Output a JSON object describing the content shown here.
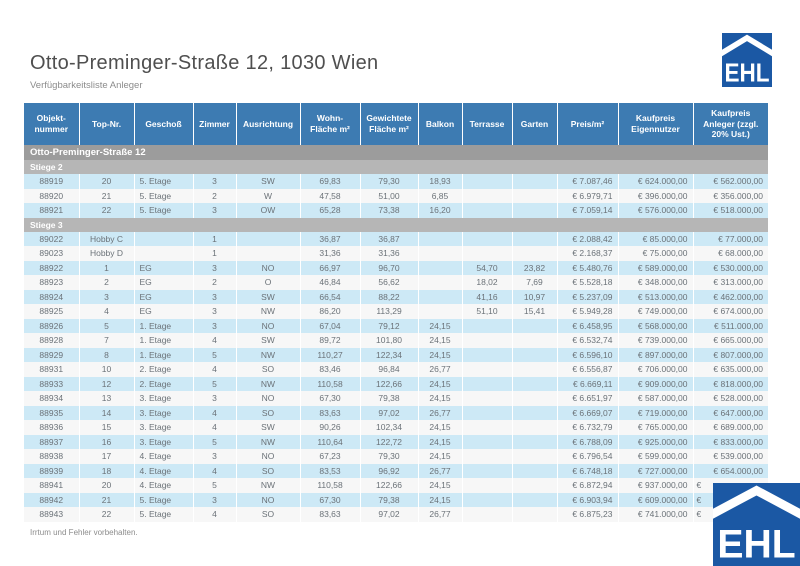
{
  "page": {
    "title": "Otto-Preminger-Straße 12, 1030 Wien",
    "subtitle": "Verfügbarkeitsliste Anleger",
    "footer": "Irrtum und Fehler vorbehalten.",
    "logo_text": "EHL"
  },
  "colors": {
    "header_blue": "#3d7bb2",
    "logo_blue": "#1b58a4",
    "project_band_gray": "#9c9c9c",
    "stiege_band_gray": "#b6b6b6",
    "row_blue": "#cde9f6",
    "row_white": "#f7f7f7",
    "text_gray": "#6b7278"
  },
  "table": {
    "columns": [
      "Objekt-nummer",
      "Top-Nr.",
      "Geschoß",
      "Zimmer",
      "Ausrichtung",
      "Wohn-Fläche m²",
      "Gewichtete Fläche m²",
      "Balkon",
      "Terrasse",
      "Garten",
      "Preis/m²",
      "Kaufpreis Eigennutzer",
      "Kaufpreis Anleger (zzgl. 20% Ust.)"
    ],
    "column_keys": [
      "objektnummer",
      "top_nr",
      "geschoss",
      "zimmer",
      "ausrichtung",
      "wohnflaeche",
      "gewichtete_flaeche",
      "balkon",
      "terrasse",
      "garten",
      "preis_m2",
      "kaufpreis_eigennutzer",
      "kaufpreis_anleger"
    ],
    "project_band": "Otto-Preminger-Straße 12",
    "sections": [
      {
        "label": "Stiege 2",
        "rows": [
          [
            "88919",
            "20",
            "5. Etage",
            "3",
            "SW",
            "69,83",
            "79,30",
            "18,93",
            "",
            "",
            "€ 7.087,46",
            "€ 624.000,00",
            "€ 562.000,00"
          ],
          [
            "88920",
            "21",
            "5. Etage",
            "2",
            "W",
            "47,58",
            "51,00",
            "6,85",
            "",
            "",
            "€ 6.979,71",
            "€ 396.000,00",
            "€ 356.000,00"
          ],
          [
            "88921",
            "22",
            "5. Etage",
            "3",
            "OW",
            "65,28",
            "73,38",
            "16,20",
            "",
            "",
            "€ 7.059,14",
            "€ 576.000,00",
            "€ 518.000,00"
          ]
        ]
      },
      {
        "label": "Stiege 3",
        "rows": [
          [
            "89022",
            "Hobby C",
            "",
            "1",
            "",
            "36,87",
            "36,87",
            "",
            "",
            "",
            "€ 2.088,42",
            "€ 85.000,00",
            "€ 77.000,00"
          ],
          [
            "89023",
            "Hobby D",
            "",
            "1",
            "",
            "31,36",
            "31,36",
            "",
            "",
            "",
            "€ 2.168,37",
            "€ 75.000,00",
            "€ 68.000,00"
          ],
          [
            "88922",
            "1",
            "EG",
            "3",
            "NO",
            "66,97",
            "96,70",
            "",
            "54,70",
            "23,82",
            "€ 5.480,76",
            "€ 589.000,00",
            "€ 530.000,00"
          ],
          [
            "88923",
            "2",
            "EG",
            "2",
            "O",
            "46,84",
            "56,62",
            "",
            "18,02",
            "7,69",
            "€ 5.528,18",
            "€ 348.000,00",
            "€ 313.000,00"
          ],
          [
            "88924",
            "3",
            "EG",
            "3",
            "SW",
            "66,54",
            "88,22",
            "",
            "41,16",
            "10,97",
            "€ 5.237,09",
            "€ 513.000,00",
            "€ 462.000,00"
          ],
          [
            "88925",
            "4",
            "EG",
            "3",
            "NW",
            "86,20",
            "113,29",
            "",
            "51,10",
            "15,41",
            "€ 5.949,28",
            "€ 749.000,00",
            "€ 674.000,00"
          ],
          [
            "88926",
            "5",
            "1. Etage",
            "3",
            "NO",
            "67,04",
            "79,12",
            "24,15",
            "",
            "",
            "€ 6.458,95",
            "€ 568.000,00",
            "€ 511.000,00"
          ],
          [
            "88928",
            "7",
            "1. Etage",
            "4",
            "SW",
            "89,72",
            "101,80",
            "24,15",
            "",
            "",
            "€ 6.532,74",
            "€ 739.000,00",
            "€ 665.000,00"
          ],
          [
            "88929",
            "8",
            "1. Etage",
            "5",
            "NW",
            "110,27",
            "122,34",
            "24,15",
            "",
            "",
            "€ 6.596,10",
            "€ 897.000,00",
            "€ 807.000,00"
          ],
          [
            "88931",
            "10",
            "2. Etage",
            "4",
            "SO",
            "83,46",
            "96,84",
            "26,77",
            "",
            "",
            "€ 6.556,87",
            "€ 706.000,00",
            "€ 635.000,00"
          ],
          [
            "88933",
            "12",
            "2. Etage",
            "5",
            "NW",
            "110,58",
            "122,66",
            "24,15",
            "",
            "",
            "€ 6.669,11",
            "€ 909.000,00",
            "€ 818.000,00"
          ],
          [
            "88934",
            "13",
            "3. Etage",
            "3",
            "NO",
            "67,30",
            "79,38",
            "24,15",
            "",
            "",
            "€ 6.651,97",
            "€ 587.000,00",
            "€ 528.000,00"
          ],
          [
            "88935",
            "14",
            "3. Etage",
            "4",
            "SO",
            "83,63",
            "97,02",
            "26,77",
            "",
            "",
            "€ 6.669,07",
            "€ 719.000,00",
            "€ 647.000,00"
          ],
          [
            "88936",
            "15",
            "3. Etage",
            "4",
            "SW",
            "90,26",
            "102,34",
            "24,15",
            "",
            "",
            "€ 6.732,79",
            "€ 765.000,00",
            "€ 689.000,00"
          ],
          [
            "88937",
            "16",
            "3. Etage",
            "5",
            "NW",
            "110,64",
            "122,72",
            "24,15",
            "",
            "",
            "€ 6.788,09",
            "€ 925.000,00",
            "€ 833.000,00"
          ],
          [
            "88938",
            "17",
            "4. Etage",
            "3",
            "NO",
            "67,23",
            "79,30",
            "24,15",
            "",
            "",
            "€ 6.796,54",
            "€ 599.000,00",
            "€ 539.000,00"
          ],
          [
            "88939",
            "18",
            "4. Etage",
            "4",
            "SO",
            "83,53",
            "96,92",
            "26,77",
            "",
            "",
            "€ 6.748,18",
            "€ 727.000,00",
            "€ 654.000,00"
          ],
          [
            "88941",
            "20",
            "4. Etage",
            "5",
            "NW",
            "110,58",
            "122,66",
            "24,15",
            "",
            "",
            "€ 6.872,94",
            "€ 937.000,00",
            "€"
          ],
          [
            "88942",
            "21",
            "5. Etage",
            "3",
            "NO",
            "67,30",
            "79,38",
            "24,15",
            "",
            "",
            "€ 6.903,94",
            "€ 609.000,00",
            "€"
          ],
          [
            "88943",
            "22",
            "5. Etage",
            "4",
            "SO",
            "83,63",
            "97,02",
            "26,77",
            "",
            "",
            "€ 6.875,23",
            "€ 741.000,00",
            "€"
          ]
        ]
      }
    ]
  }
}
